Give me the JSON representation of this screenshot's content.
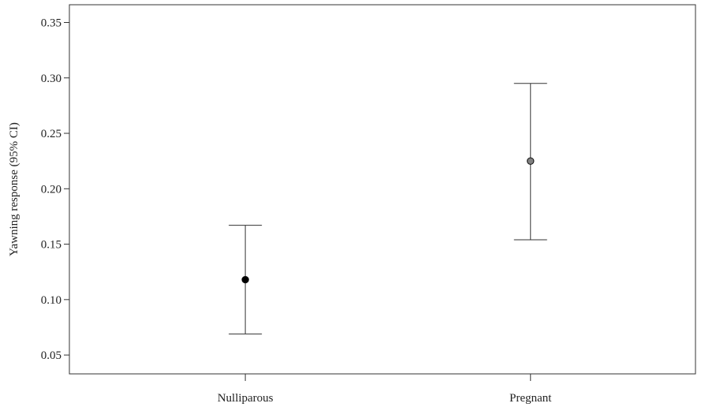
{
  "chart_data": {
    "type": "scatter",
    "title": "",
    "xlabel": "",
    "ylabel": "Yawning response (95% CI)",
    "categories": [
      "Nulliparous",
      "Pregnant"
    ],
    "series": [
      {
        "points": [
          {
            "category": "Nulliparous",
            "value": 0.118,
            "ci_low": 0.069,
            "ci_high": 0.167,
            "color": "#000000"
          },
          {
            "category": "Pregnant",
            "value": 0.225,
            "ci_low": 0.154,
            "ci_high": 0.295,
            "color": "#808080"
          }
        ]
      }
    ],
    "ylim": [
      0.033,
      0.366
    ],
    "yticks": [
      "0.05",
      "0.10",
      "0.15",
      "0.20",
      "0.25",
      "0.30",
      "0.35"
    ],
    "grid": false,
    "legend": "none"
  }
}
